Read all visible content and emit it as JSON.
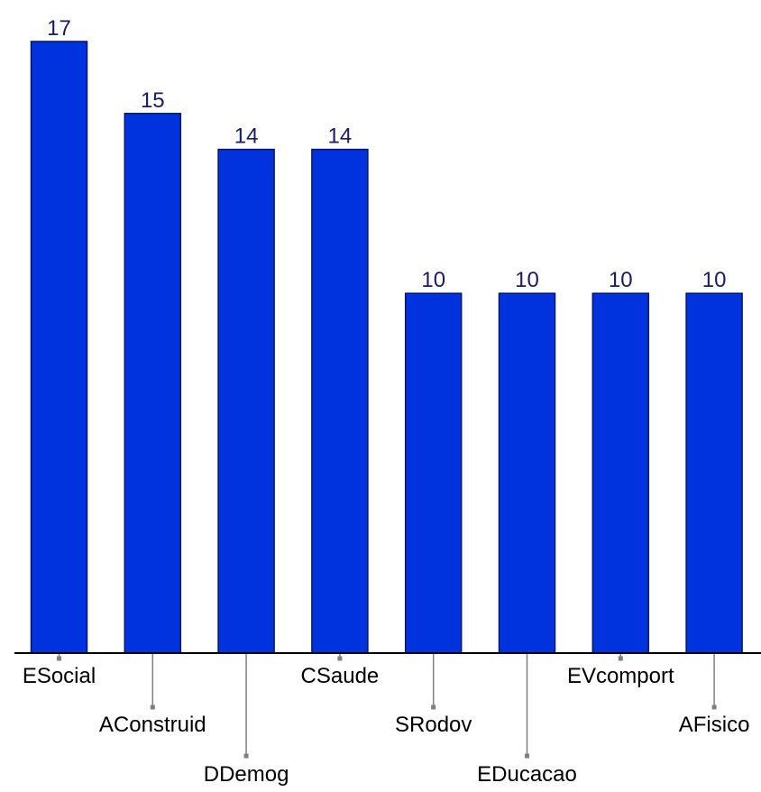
{
  "chart_data": {
    "type": "bar",
    "categories": [
      "ESocial",
      "AConstruid",
      "DDemog",
      "CSaude",
      "SRodov",
      "EDucacao",
      "EVcomport",
      "AFisico"
    ],
    "values": [
      17,
      15,
      14,
      14,
      10,
      10,
      10,
      10
    ],
    "title": "",
    "xlabel": "",
    "ylabel": "",
    "ylim": [
      0,
      17
    ],
    "grid": false,
    "legend": "none",
    "data_labels": true,
    "bar_color": "#0033dd",
    "bar_edge_color": "#00156e",
    "value_label_color": "#1a1a66",
    "category_label_color": "#000000",
    "axis_color": "#000000",
    "leader_color": "#7f7f7f"
  }
}
